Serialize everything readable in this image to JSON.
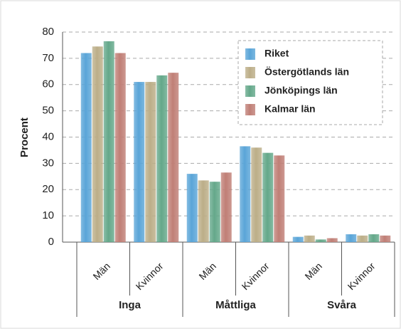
{
  "chart_data": {
    "type": "bar",
    "y_label": "Procent",
    "categories": [
      "Män",
      "Kvinnor",
      "Män",
      "Kvinnor",
      "Män",
      "Kvinnor"
    ],
    "groups": [
      "Inga",
      "Måttliga",
      "Svåra"
    ],
    "series": [
      {
        "name": "Riket",
        "color": "#5aa5d8",
        "values": [
          72,
          61,
          26,
          36.5,
          2,
          3
        ]
      },
      {
        "name": "Östergötlands län",
        "color": "#bcae88",
        "values": [
          74.5,
          61,
          23.5,
          36,
          2.5,
          2.5
        ]
      },
      {
        "name": "Jönköpings län",
        "color": "#64a88a",
        "values": [
          76.5,
          63.5,
          23,
          34,
          1,
          3
        ]
      },
      {
        "name": "Kalmar län",
        "color": "#c07f76",
        "values": [
          72,
          64.5,
          26.5,
          33,
          1.5,
          2.5
        ]
      }
    ],
    "ylim": [
      0,
      80
    ],
    "yticks": [
      0,
      10,
      20,
      30,
      40,
      50,
      60,
      70,
      80
    ],
    "grid": true,
    "legend": "top-right"
  }
}
